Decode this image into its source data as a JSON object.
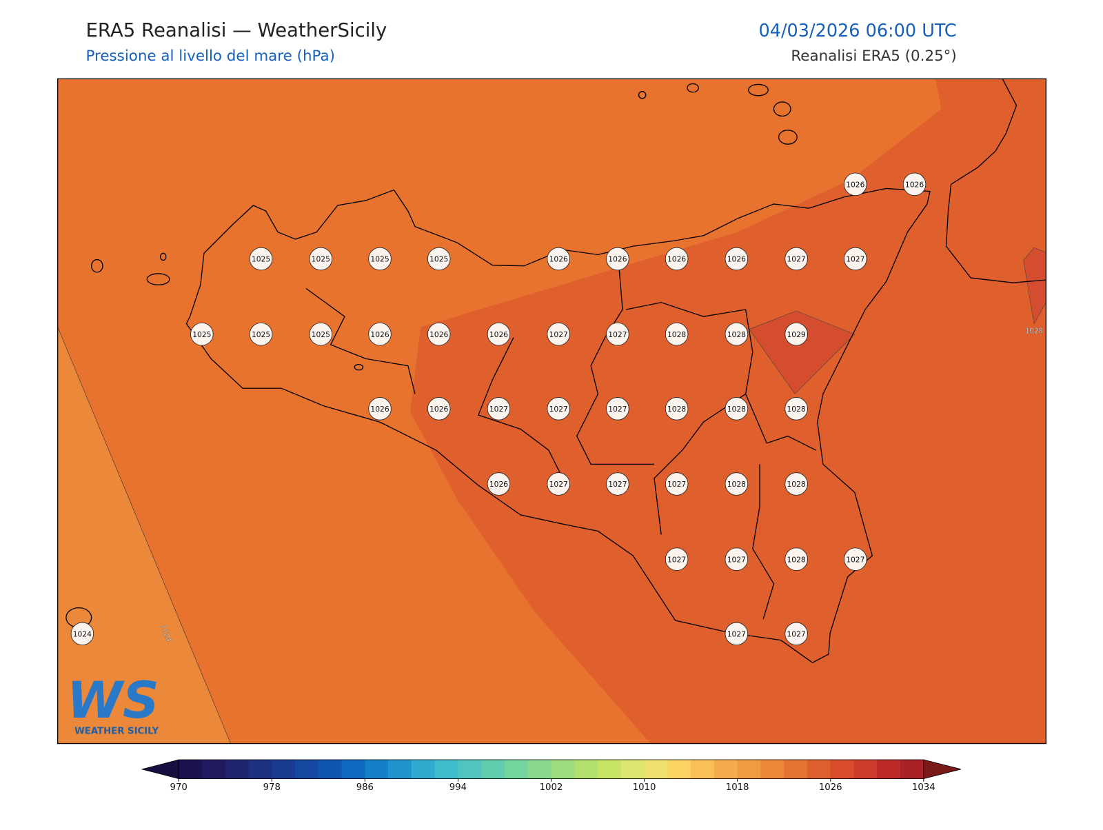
{
  "header": {
    "title": "ERA5 Reanalisi — WeatherSicily",
    "subtitle": "Pressione al livello del mare (hPa)",
    "datetime": "04/03/2026 06:00 UTC",
    "source": "Reanalisi ERA5 (0.25°)"
  },
  "map": {
    "stations": [
      1026,
      1026,
      1025,
      1025,
      1025,
      1025,
      1026,
      1026,
      1026,
      1026,
      1027,
      1027,
      1025,
      1025,
      1025,
      1026,
      1026,
      1026,
      1027,
      1027,
      1028,
      1028,
      1029,
      1026,
      1026,
      1027,
      1027,
      1027,
      1028,
      1028,
      1028,
      1026,
      1027,
      1027,
      1027,
      1028,
      1028,
      1027,
      1027,
      1028,
      1027,
      1027,
      1027,
      1024
    ],
    "contour_labels": [
      1024,
      1028
    ]
  },
  "colorbar": {
    "ticks": [
      970,
      978,
      986,
      994,
      1002,
      1010,
      1018,
      1026,
      1034
    ],
    "colors": [
      "#1c1250",
      "#211a60",
      "#1f2470",
      "#1e3080",
      "#1a3c90",
      "#1548a0",
      "#1055b0",
      "#0c68c0",
      "#1480c8",
      "#2294cc",
      "#30aacf",
      "#40bccc",
      "#50c4be",
      "#62ccae",
      "#74d49e",
      "#88d890",
      "#9cdc7e",
      "#b2e06c",
      "#c8e464",
      "#dce670",
      "#f0e070",
      "#fcd464",
      "#f9c058",
      "#f5ac4c",
      "#f09a42",
      "#eb883a",
      "#e57434",
      "#de602e",
      "#d84c2a",
      "#cc3a2a",
      "#bc2a2a",
      "#a82226"
    ],
    "extend_colors": [
      "#180e40",
      "#7a1a1a"
    ]
  },
  "logo": {
    "mark": "WS",
    "text": "WEATHER SICILY"
  }
}
